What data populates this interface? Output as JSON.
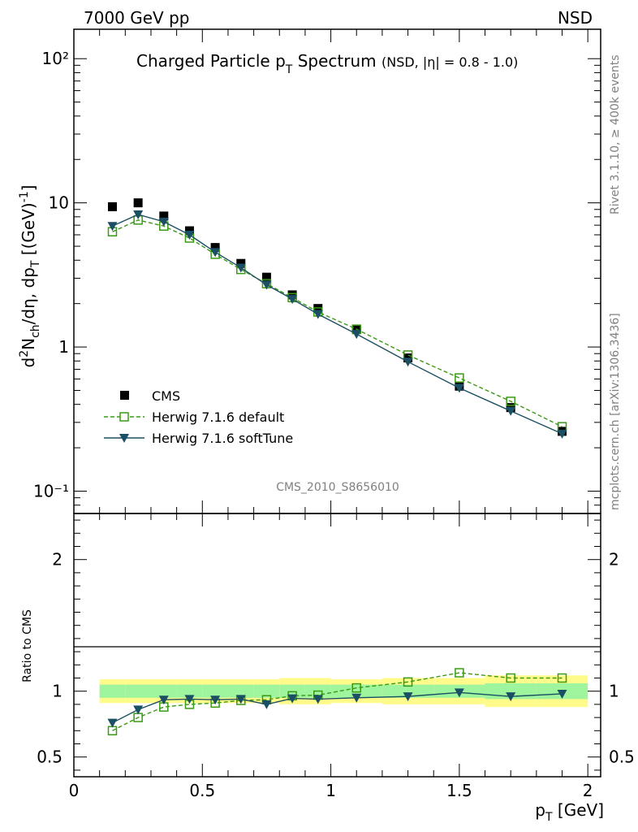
{
  "header": {
    "left": "7000 GeV pp",
    "right": "NSD"
  },
  "side_labels": {
    "top": "Rivet 3.1.10, ≥ 400k events",
    "bottom": "mcplots.cern.ch [arXiv:1306.3436]"
  },
  "colors": {
    "cms": "#000000",
    "herwig_default": "#3a9a14",
    "herwig_soft": "#1b4f63",
    "band_inner": "#9ef59e",
    "band_outer": "#fffb8a",
    "watermark": "#909090"
  },
  "chart_data": [
    {
      "type": "scatter",
      "panel": "main",
      "title": "Charged Particle p_T Spectrum",
      "title_suffix": "(NSD, |η| = 0.8 - 1.0)",
      "ylabel": "d²N_ch/dη dp_T [(GeV)⁻¹]",
      "watermark": "CMS_2010_S8656010",
      "yscale": "log",
      "ylim": [
        0.07,
        160
      ],
      "xlim": [
        0,
        2.05
      ],
      "ytick_labels": [
        "10⁻¹",
        "1",
        "10",
        "10²"
      ],
      "legend": {
        "position": "lower-left",
        "entries": [
          "CMS",
          "Herwig 7.1.6 default",
          "Herwig 7.1.6 softTune"
        ]
      },
      "x": [
        0.15,
        0.25,
        0.35,
        0.45,
        0.55,
        0.65,
        0.75,
        0.85,
        0.95,
        1.1,
        1.3,
        1.5,
        1.7,
        1.9
      ],
      "series": [
        {
          "name": "CMS",
          "style": "marker",
          "values": [
            9.4,
            10.0,
            8.1,
            6.4,
            4.9,
            3.8,
            3.05,
            2.3,
            1.85,
            1.32,
            0.84,
            0.535,
            0.38,
            0.26
          ]
        },
        {
          "name": "Herwig 7.1.6 default",
          "style": "dashed-open-square",
          "values": [
            6.3,
            7.6,
            6.9,
            5.7,
            4.4,
            3.45,
            2.75,
            2.2,
            1.75,
            1.33,
            0.88,
            0.61,
            0.42,
            0.28
          ]
        },
        {
          "name": "Herwig 7.1.6 softTune",
          "style": "solid-triangle",
          "values": [
            6.9,
            8.3,
            7.4,
            6.0,
            4.55,
            3.55,
            2.7,
            2.15,
            1.69,
            1.23,
            0.79,
            0.52,
            0.36,
            0.25
          ]
        }
      ]
    },
    {
      "type": "line",
      "panel": "ratio",
      "ylabel": "Ratio to CMS",
      "xlabel": "p_T [GeV]",
      "ylim": [
        0.35,
        2.35
      ],
      "xlim": [
        0,
        2.05
      ],
      "yticks": [
        0.5,
        1,
        2
      ],
      "ytick_labels": [
        "0.5",
        "1",
        "2"
      ],
      "xticks": [
        0,
        0.5,
        1,
        1.5,
        2
      ],
      "xtick_labels": [
        "0",
        "0.5",
        "1",
        "1.5",
        "2"
      ],
      "x": [
        0.15,
        0.25,
        0.35,
        0.45,
        0.55,
        0.65,
        0.75,
        0.85,
        0.95,
        1.1,
        1.3,
        1.5,
        1.7,
        1.9
      ],
      "bands": {
        "bins": [
          [
            0.1,
            0.2
          ],
          [
            0.2,
            0.3
          ],
          [
            0.3,
            0.4
          ],
          [
            0.4,
            0.5
          ],
          [
            0.5,
            0.6
          ],
          [
            0.6,
            0.7
          ],
          [
            0.7,
            0.8
          ],
          [
            0.8,
            0.9
          ],
          [
            0.9,
            1.0
          ],
          [
            1.0,
            1.2
          ],
          [
            1.2,
            1.4
          ],
          [
            1.4,
            1.6
          ],
          [
            1.6,
            1.8
          ],
          [
            1.8,
            2.0
          ]
        ],
        "inner": [
          0.05,
          0.05,
          0.05,
          0.05,
          0.05,
          0.05,
          0.05,
          0.05,
          0.05,
          0.05,
          0.05,
          0.05,
          0.06,
          0.06
        ],
        "outer": [
          0.09,
          0.09,
          0.09,
          0.09,
          0.09,
          0.09,
          0.09,
          0.1,
          0.1,
          0.09,
          0.1,
          0.1,
          0.12,
          0.12
        ]
      },
      "series": [
        {
          "name": "Herwig 7.1.6 default",
          "style": "dashed-open-square",
          "values": [
            0.7,
            0.8,
            0.88,
            0.9,
            0.91,
            0.93,
            0.935,
            0.965,
            0.97,
            1.025,
            1.07,
            1.14,
            1.1,
            1.1
          ]
        },
        {
          "name": "Herwig 7.1.6 softTune",
          "style": "solid-triangle",
          "values": [
            0.76,
            0.86,
            0.935,
            0.94,
            0.935,
            0.94,
            0.9,
            0.945,
            0.94,
            0.95,
            0.96,
            0.99,
            0.96,
            0.98
          ]
        }
      ]
    }
  ]
}
